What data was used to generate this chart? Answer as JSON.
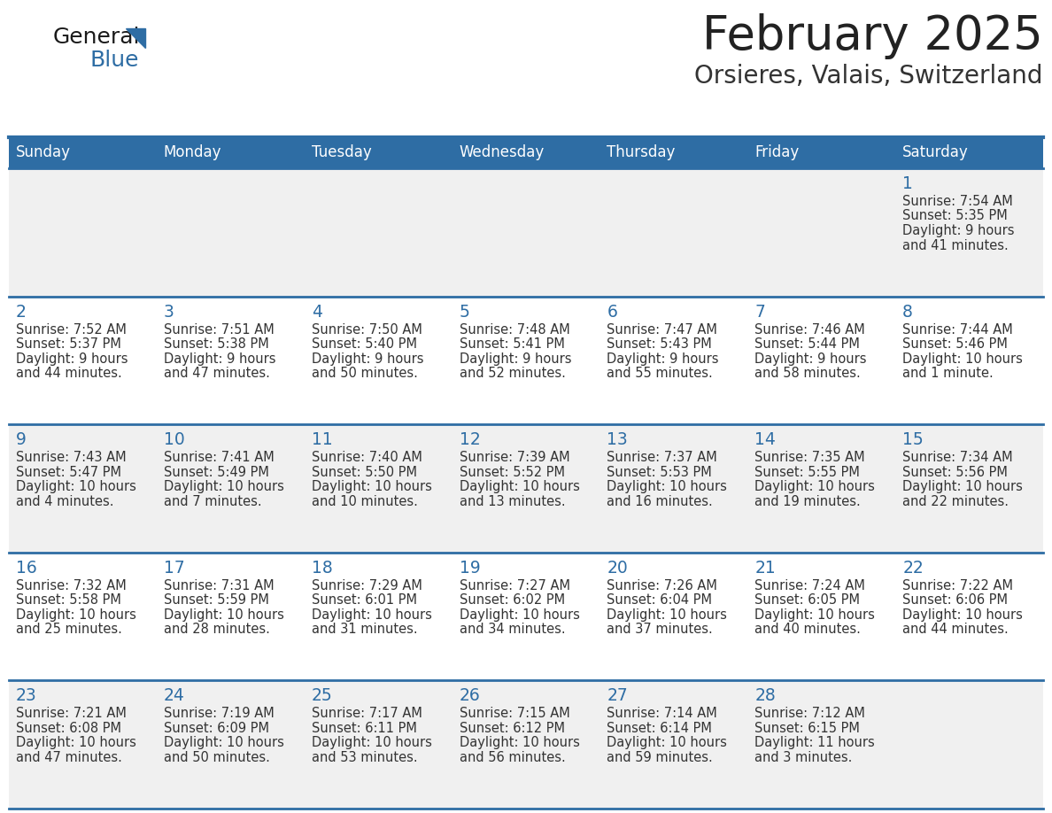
{
  "title": "February 2025",
  "subtitle": "Orsieres, Valais, Switzerland",
  "days_of_week": [
    "Sunday",
    "Monday",
    "Tuesday",
    "Wednesday",
    "Thursday",
    "Friday",
    "Saturday"
  ],
  "header_bg": "#2E6DA4",
  "header_text": "#FFFFFF",
  "cell_bg_odd": "#F0F0F0",
  "cell_bg_even": "#FFFFFF",
  "cell_text": "#333333",
  "date_text": "#2E6DA4",
  "row_line_color": "#2E6DA4",
  "title_color": "#222222",
  "subtitle_color": "#333333",
  "logo_general_color": "#1a1a1a",
  "logo_blue_color": "#2E6DA4",
  "calendar_data": [
    {
      "day": 1,
      "col": 6,
      "row": 0,
      "sunrise": "7:54 AM",
      "sunset": "5:35 PM",
      "daylight": "9 hours\nand 41 minutes."
    },
    {
      "day": 2,
      "col": 0,
      "row": 1,
      "sunrise": "7:52 AM",
      "sunset": "5:37 PM",
      "daylight": "9 hours\nand 44 minutes."
    },
    {
      "day": 3,
      "col": 1,
      "row": 1,
      "sunrise": "7:51 AM",
      "sunset": "5:38 PM",
      "daylight": "9 hours\nand 47 minutes."
    },
    {
      "day": 4,
      "col": 2,
      "row": 1,
      "sunrise": "7:50 AM",
      "sunset": "5:40 PM",
      "daylight": "9 hours\nand 50 minutes."
    },
    {
      "day": 5,
      "col": 3,
      "row": 1,
      "sunrise": "7:48 AM",
      "sunset": "5:41 PM",
      "daylight": "9 hours\nand 52 minutes."
    },
    {
      "day": 6,
      "col": 4,
      "row": 1,
      "sunrise": "7:47 AM",
      "sunset": "5:43 PM",
      "daylight": "9 hours\nand 55 minutes."
    },
    {
      "day": 7,
      "col": 5,
      "row": 1,
      "sunrise": "7:46 AM",
      "sunset": "5:44 PM",
      "daylight": "9 hours\nand 58 minutes."
    },
    {
      "day": 8,
      "col": 6,
      "row": 1,
      "sunrise": "7:44 AM",
      "sunset": "5:46 PM",
      "daylight": "10 hours\nand 1 minute."
    },
    {
      "day": 9,
      "col": 0,
      "row": 2,
      "sunrise": "7:43 AM",
      "sunset": "5:47 PM",
      "daylight": "10 hours\nand 4 minutes."
    },
    {
      "day": 10,
      "col": 1,
      "row": 2,
      "sunrise": "7:41 AM",
      "sunset": "5:49 PM",
      "daylight": "10 hours\nand 7 minutes."
    },
    {
      "day": 11,
      "col": 2,
      "row": 2,
      "sunrise": "7:40 AM",
      "sunset": "5:50 PM",
      "daylight": "10 hours\nand 10 minutes."
    },
    {
      "day": 12,
      "col": 3,
      "row": 2,
      "sunrise": "7:39 AM",
      "sunset": "5:52 PM",
      "daylight": "10 hours\nand 13 minutes."
    },
    {
      "day": 13,
      "col": 4,
      "row": 2,
      "sunrise": "7:37 AM",
      "sunset": "5:53 PM",
      "daylight": "10 hours\nand 16 minutes."
    },
    {
      "day": 14,
      "col": 5,
      "row": 2,
      "sunrise": "7:35 AM",
      "sunset": "5:55 PM",
      "daylight": "10 hours\nand 19 minutes."
    },
    {
      "day": 15,
      "col": 6,
      "row": 2,
      "sunrise": "7:34 AM",
      "sunset": "5:56 PM",
      "daylight": "10 hours\nand 22 minutes."
    },
    {
      "day": 16,
      "col": 0,
      "row": 3,
      "sunrise": "7:32 AM",
      "sunset": "5:58 PM",
      "daylight": "10 hours\nand 25 minutes."
    },
    {
      "day": 17,
      "col": 1,
      "row": 3,
      "sunrise": "7:31 AM",
      "sunset": "5:59 PM",
      "daylight": "10 hours\nand 28 minutes."
    },
    {
      "day": 18,
      "col": 2,
      "row": 3,
      "sunrise": "7:29 AM",
      "sunset": "6:01 PM",
      "daylight": "10 hours\nand 31 minutes."
    },
    {
      "day": 19,
      "col": 3,
      "row": 3,
      "sunrise": "7:27 AM",
      "sunset": "6:02 PM",
      "daylight": "10 hours\nand 34 minutes."
    },
    {
      "day": 20,
      "col": 4,
      "row": 3,
      "sunrise": "7:26 AM",
      "sunset": "6:04 PM",
      "daylight": "10 hours\nand 37 minutes."
    },
    {
      "day": 21,
      "col": 5,
      "row": 3,
      "sunrise": "7:24 AM",
      "sunset": "6:05 PM",
      "daylight": "10 hours\nand 40 minutes."
    },
    {
      "day": 22,
      "col": 6,
      "row": 3,
      "sunrise": "7:22 AM",
      "sunset": "6:06 PM",
      "daylight": "10 hours\nand 44 minutes."
    },
    {
      "day": 23,
      "col": 0,
      "row": 4,
      "sunrise": "7:21 AM",
      "sunset": "6:08 PM",
      "daylight": "10 hours\nand 47 minutes."
    },
    {
      "day": 24,
      "col": 1,
      "row": 4,
      "sunrise": "7:19 AM",
      "sunset": "6:09 PM",
      "daylight": "10 hours\nand 50 minutes."
    },
    {
      "day": 25,
      "col": 2,
      "row": 4,
      "sunrise": "7:17 AM",
      "sunset": "6:11 PM",
      "daylight": "10 hours\nand 53 minutes."
    },
    {
      "day": 26,
      "col": 3,
      "row": 4,
      "sunrise": "7:15 AM",
      "sunset": "6:12 PM",
      "daylight": "10 hours\nand 56 minutes."
    },
    {
      "day": 27,
      "col": 4,
      "row": 4,
      "sunrise": "7:14 AM",
      "sunset": "6:14 PM",
      "daylight": "10 hours\nand 59 minutes."
    },
    {
      "day": 28,
      "col": 5,
      "row": 4,
      "sunrise": "7:12 AM",
      "sunset": "6:15 PM",
      "daylight": "11 hours\nand 3 minutes."
    }
  ],
  "num_rows": 5,
  "num_cols": 7
}
